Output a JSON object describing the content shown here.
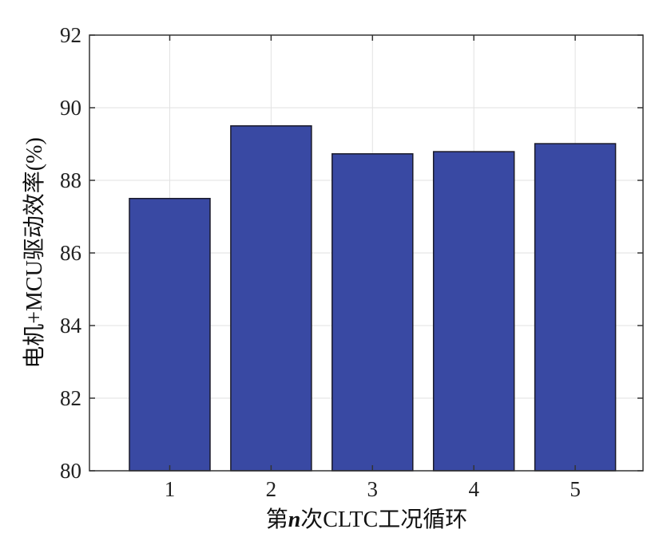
{
  "chart_data": {
    "type": "bar",
    "categories": [
      "1",
      "2",
      "3",
      "4",
      "5"
    ],
    "values": [
      87.5,
      89.5,
      88.73,
      88.79,
      89.01
    ],
    "xlabel": "第n次CLTC工况循环",
    "xlabel_parts": [
      "第",
      "n",
      "次CLTC工况循环"
    ],
    "ylabel": "电机+MCU驱动效率(%)",
    "ylim": [
      80,
      92
    ],
    "yticks": [
      "80",
      "82",
      "84",
      "86",
      "88",
      "90",
      "92"
    ],
    "grid": true,
    "bar_color": "#3949a3",
    "edge_color": "#1a1a2a"
  }
}
